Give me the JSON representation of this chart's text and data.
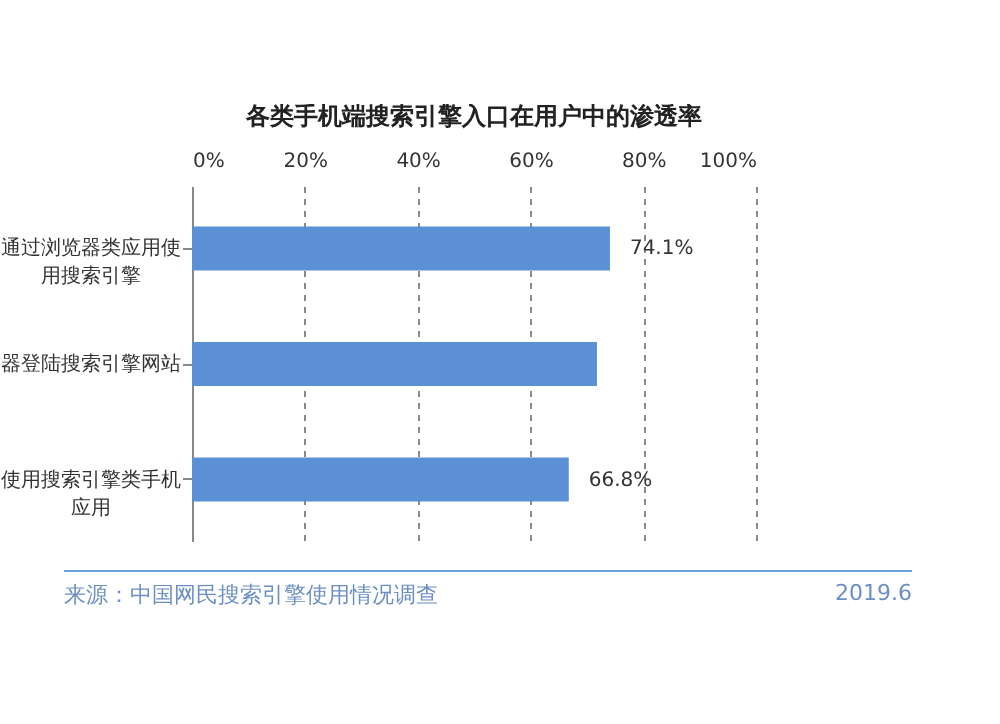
{
  "chart_data": {
    "type": "bar",
    "orientation": "horizontal",
    "title": "各类手机端搜索引擎入口在用户中的渗透率",
    "categories": [
      "通过浏览器类应用使用搜索引擎",
      "器登陆搜索引擎网站",
      "使用搜索引擎类手机应用"
    ],
    "values": [
      74.1,
      71.8,
      66.8
    ],
    "value_labels": [
      "74.1%",
      null,
      "66.8%"
    ],
    "color": "#5b8fd6",
    "xlim": [
      0,
      100
    ],
    "xticks": [
      {
        "value": 0,
        "label": "0%"
      },
      {
        "value": 20,
        "label": "20%"
      },
      {
        "value": 40,
        "label": "40%"
      },
      {
        "value": 60,
        "label": "60%"
      },
      {
        "value": 80,
        "label": "80%"
      },
      {
        "value": 100,
        "label": "100%"
      }
    ],
    "grid": "x",
    "annotations": [
      "来源：中国网民搜索引擎使用情况调查",
      "2019.6"
    ]
  }
}
